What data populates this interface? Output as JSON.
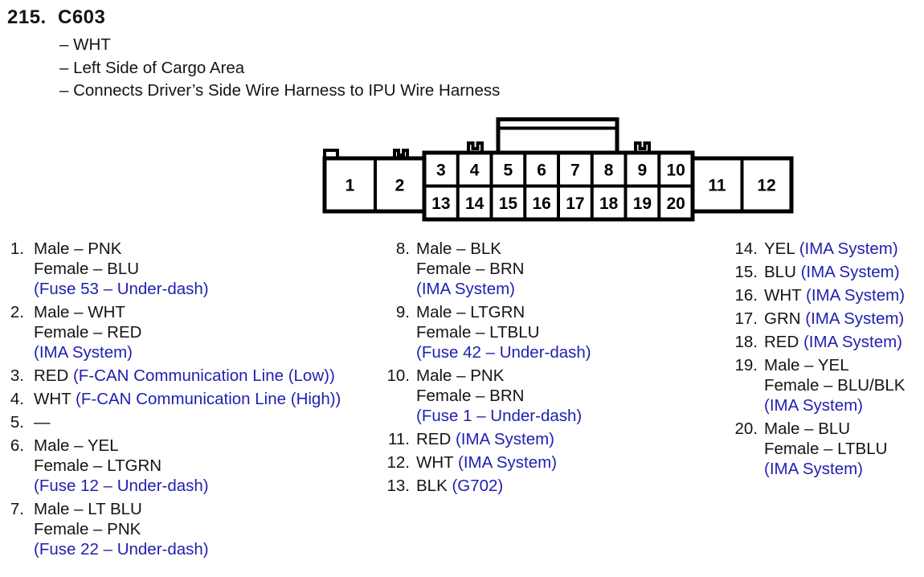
{
  "header": {
    "index": "215.",
    "connector_id": "C603",
    "details": [
      "– WHT",
      "– Left Side of Cargo Area",
      "– Connects Driver’s Side Wire Harness to IPU Wire Harness"
    ]
  },
  "connector": {
    "left_cells": [
      "1",
      "2"
    ],
    "top_row": [
      "3",
      "4",
      "5",
      "6",
      "7",
      "8",
      "9",
      "10"
    ],
    "bottom_row": [
      "13",
      "14",
      "15",
      "16",
      "17",
      "18",
      "19",
      "20"
    ],
    "right_cells": [
      "11",
      "12"
    ]
  },
  "colors": {
    "reference_blue": "#1f1fb0",
    "text_black": "#141414",
    "line_black": "#000000"
  },
  "pins": {
    "columns": [
      {
        "items": [
          {
            "n": "1.",
            "lines": [
              [
                {
                  "t": "Male – PNK",
                  "c": "k"
                }
              ],
              [
                {
                  "t": "Female – BLU",
                  "c": "k"
                }
              ],
              [
                {
                  "t": "(Fuse 53 – Under-dash)",
                  "c": "b"
                }
              ]
            ]
          },
          {
            "n": "2.",
            "lines": [
              [
                {
                  "t": "Male – WHT",
                  "c": "k"
                }
              ],
              [
                {
                  "t": "Female – RED",
                  "c": "k"
                }
              ],
              [
                {
                  "t": "(IMA System)",
                  "c": "b"
                }
              ]
            ]
          },
          {
            "n": "3.",
            "lines": [
              [
                {
                  "t": "RED ",
                  "c": "k"
                },
                {
                  "t": "(F-CAN Communication Line (Low))",
                  "c": "b"
                }
              ]
            ]
          },
          {
            "n": "4.",
            "lines": [
              [
                {
                  "t": "WHT ",
                  "c": "k"
                },
                {
                  "t": "(F-CAN Communication Line (High))",
                  "c": "b"
                }
              ]
            ]
          },
          {
            "n": "5.",
            "lines": [
              [
                {
                  "t": "—",
                  "c": "k"
                }
              ]
            ]
          },
          {
            "n": "6.",
            "lines": [
              [
                {
                  "t": "Male – YEL",
                  "c": "k"
                }
              ],
              [
                {
                  "t": "Female – LTGRN",
                  "c": "k"
                }
              ],
              [
                {
                  "t": "(Fuse 12 – Under-dash)",
                  "c": "b"
                }
              ]
            ]
          },
          {
            "n": "7.",
            "lines": [
              [
                {
                  "t": "Male – LT BLU",
                  "c": "k"
                }
              ],
              [
                {
                  "t": "Female – PNK",
                  "c": "k"
                }
              ],
              [
                {
                  "t": "(Fuse 22 – Under-dash)",
                  "c": "b"
                }
              ]
            ]
          }
        ]
      },
      {
        "items": [
          {
            "n": "8.",
            "lines": [
              [
                {
                  "t": "Male – BLK",
                  "c": "k"
                }
              ],
              [
                {
                  "t": "Female – BRN",
                  "c": "k"
                }
              ],
              [
                {
                  "t": "(IMA System)",
                  "c": "b"
                }
              ]
            ]
          },
          {
            "n": "9.",
            "lines": [
              [
                {
                  "t": "Male – LTGRN",
                  "c": "k"
                }
              ],
              [
                {
                  "t": "Female – LTBLU",
                  "c": "k"
                }
              ],
              [
                {
                  "t": "(Fuse 42 – Under-dash)",
                  "c": "b"
                }
              ]
            ]
          },
          {
            "n": "10.",
            "lines": [
              [
                {
                  "t": "Male – PNK",
                  "c": "k"
                }
              ],
              [
                {
                  "t": "Female – BRN",
                  "c": "k"
                }
              ],
              [
                {
                  "t": "(Fuse 1 – Under-dash)",
                  "c": "b"
                }
              ]
            ]
          },
          {
            "n": "11.",
            "lines": [
              [
                {
                  "t": "RED ",
                  "c": "k"
                },
                {
                  "t": "(IMA System)",
                  "c": "b"
                }
              ]
            ]
          },
          {
            "n": "12.",
            "lines": [
              [
                {
                  "t": "WHT ",
                  "c": "k"
                },
                {
                  "t": "(IMA System)",
                  "c": "b"
                }
              ]
            ]
          },
          {
            "n": "13.",
            "lines": [
              [
                {
                  "t": "BLK ",
                  "c": "k"
                },
                {
                  "t": "(G702)",
                  "c": "b"
                }
              ]
            ]
          }
        ]
      },
      {
        "items": [
          {
            "n": "14.",
            "lines": [
              [
                {
                  "t": "YEL ",
                  "c": "k"
                },
                {
                  "t": "(IMA System)",
                  "c": "b"
                }
              ]
            ]
          },
          {
            "n": "15.",
            "lines": [
              [
                {
                  "t": "BLU ",
                  "c": "k"
                },
                {
                  "t": "(IMA System)",
                  "c": "b"
                }
              ]
            ]
          },
          {
            "n": "16.",
            "lines": [
              [
                {
                  "t": "WHT ",
                  "c": "k"
                },
                {
                  "t": "(IMA System)",
                  "c": "b"
                }
              ]
            ]
          },
          {
            "n": "17.",
            "lines": [
              [
                {
                  "t": "GRN ",
                  "c": "k"
                },
                {
                  "t": "(IMA System)",
                  "c": "b"
                }
              ]
            ]
          },
          {
            "n": "18.",
            "lines": [
              [
                {
                  "t": "RED ",
                  "c": "k"
                },
                {
                  "t": "(IMA System)",
                  "c": "b"
                }
              ]
            ]
          },
          {
            "n": "19.",
            "lines": [
              [
                {
                  "t": "Male – YEL",
                  "c": "k"
                }
              ],
              [
                {
                  "t": "Female – BLU/BLK",
                  "c": "k"
                }
              ],
              [
                {
                  "t": "(IMA System)",
                  "c": "b"
                }
              ]
            ]
          },
          {
            "n": "20.",
            "lines": [
              [
                {
                  "t": "Male – BLU",
                  "c": "k"
                }
              ],
              [
                {
                  "t": "Female – LTBLU",
                  "c": "k"
                }
              ],
              [
                {
                  "t": "(IMA System)",
                  "c": "b"
                }
              ]
            ]
          }
        ]
      }
    ]
  }
}
